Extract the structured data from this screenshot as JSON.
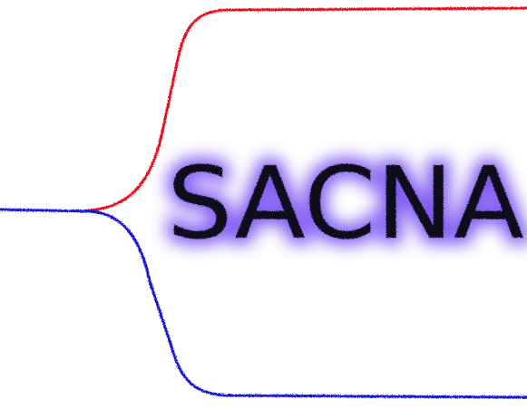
{
  "logo": {
    "wordmark": "SACNA",
    "colors": {
      "background": "#ffffff",
      "upper_branch": "#e8101c",
      "lower_branch": "#1414d2",
      "text": "#0e0a1e",
      "glow": "#6a3cf0"
    }
  }
}
